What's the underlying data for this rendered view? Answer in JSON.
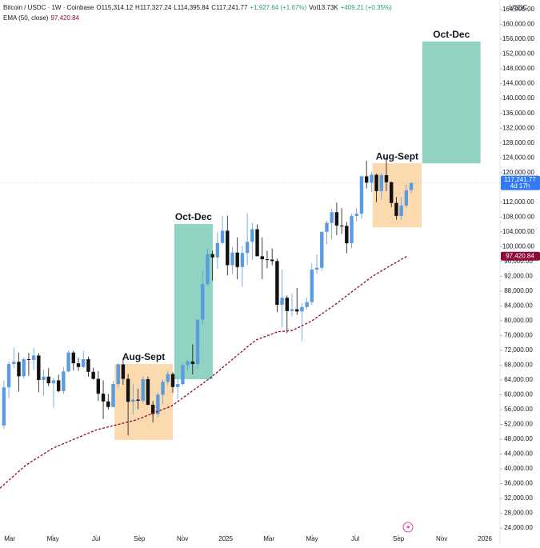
{
  "header": {
    "symbol": "Bitcoin / USDC · 1W · Coinbase",
    "fields": [
      "O115,314.12",
      "H117,327.24",
      "L114,395.84",
      "C117,241.77",
      "+1,927.64 (+1.67%)",
      "Vol13.73K",
      "+409.21 (+0.35%)"
    ],
    "indicator": "EMA (50, close)",
    "indicator_value": "97,420.84"
  },
  "chart_data": {
    "type": "candlestick",
    "y_axis_label": "USDC",
    "price_badge": "117,241.77",
    "countdown": "4d 17h",
    "ema_badge": "97,420.84",
    "up_color": "#5b9be0",
    "down_color": "#111111",
    "ylim": [
      22300,
      166600
    ],
    "xlim": [
      1.55,
      24.7
    ],
    "xticks": [
      {
        "value": 2,
        "label": "Mar"
      },
      {
        "value": 4,
        "label": "May"
      },
      {
        "value": 6,
        "label": "Jul"
      },
      {
        "value": 8,
        "label": "Sep"
      },
      {
        "value": 10,
        "label": "Nov"
      },
      {
        "value": 12,
        "label": "2025"
      },
      {
        "value": 14,
        "label": "Mar"
      },
      {
        "value": 16,
        "label": "May"
      },
      {
        "value": 18,
        "label": "Jul"
      },
      {
        "value": 20,
        "label": "Sep"
      },
      {
        "value": 22,
        "label": "Nov"
      },
      {
        "value": 24,
        "label": "2026"
      }
    ],
    "yticks": [
      {
        "value": 24000,
        "label": "24,000.00"
      },
      {
        "value": 28000,
        "label": "28,000.00"
      },
      {
        "value": 32000,
        "label": "32,000.00"
      },
      {
        "value": 36000,
        "label": "36,000.00"
      },
      {
        "value": 40000,
        "label": "40,000.00"
      },
      {
        "value": 44000,
        "label": "44,000.00"
      },
      {
        "value": 48000,
        "label": "48,000.00"
      },
      {
        "value": 52000,
        "label": "52,000.00"
      },
      {
        "value": 56000,
        "label": "56,000.00"
      },
      {
        "value": 60000,
        "label": "60,000.00"
      },
      {
        "value": 64000,
        "label": "64,000.00"
      },
      {
        "value": 68000,
        "label": "68,000.00"
      },
      {
        "value": 72000,
        "label": "72,000.00"
      },
      {
        "value": 76000,
        "label": "76,000.00"
      },
      {
        "value": 80000,
        "label": "80,000.00"
      },
      {
        "value": 84000,
        "label": "84,000.00"
      },
      {
        "value": 88000,
        "label": "88,000.00"
      },
      {
        "value": 92000,
        "label": "92,000.00"
      },
      {
        "value": 96000,
        "label": "96,000.00"
      },
      {
        "value": 100000,
        "label": "100,000.00"
      },
      {
        "value": 104000,
        "label": "104,000.00"
      },
      {
        "value": 108000,
        "label": "108,000.00"
      },
      {
        "value": 112000,
        "label": "112,000.00"
      },
      {
        "value": 116000,
        "label": "116,000.00"
      },
      {
        "value": 120000,
        "label": "120,000.00"
      },
      {
        "value": 124000,
        "label": "124,000.00"
      },
      {
        "value": 128000,
        "label": "128,000.00"
      },
      {
        "value": 132000,
        "label": "132,000.00"
      },
      {
        "value": 136000,
        "label": "136,000.00"
      },
      {
        "value": 140000,
        "label": "140,000.00"
      },
      {
        "value": 144000,
        "label": "144,000.00"
      },
      {
        "value": 148000,
        "label": "148,000.00"
      },
      {
        "value": 152000,
        "label": "152,000.00"
      },
      {
        "value": 156000,
        "label": "156,000.00"
      },
      {
        "value": 160000,
        "label": "160,000.00"
      },
      {
        "value": 164000,
        "label": "164,000.00"
      }
    ],
    "x": [
      1.73,
      1.96,
      2.19,
      2.42,
      2.65,
      2.88,
      3.11,
      3.34,
      3.57,
      3.8,
      4.03,
      4.26,
      4.49,
      4.72,
      4.95,
      5.18,
      5.41,
      5.64,
      5.87,
      6.1,
      6.33,
      6.56,
      6.79,
      7.02,
      7.25,
      7.48,
      7.71,
      7.94,
      8.17,
      8.4,
      8.63,
      8.86,
      9.09,
      9.32,
      9.55,
      9.78,
      10.01,
      10.24,
      10.47,
      10.7,
      10.93,
      11.16,
      11.39,
      11.62,
      11.85,
      12.08,
      12.31,
      12.54,
      12.77,
      13.0,
      13.23,
      13.46,
      13.69,
      13.92,
      14.15,
      14.38,
      14.61,
      14.84,
      15.07,
      15.3,
      15.53,
      15.76,
      15.99,
      16.22,
      16.45,
      16.68,
      16.91,
      17.14,
      17.37,
      17.6,
      17.83,
      18.06,
      18.29,
      18.52,
      18.75,
      18.98,
      19.21,
      19.44,
      19.67,
      19.9,
      20.13,
      20.36,
      20.59
    ],
    "open": [
      51700,
      62000,
      68300,
      68900,
      65000,
      69600,
      69400,
      70600,
      64000,
      64900,
      63100,
      63900,
      61000,
      66300,
      71400,
      68500,
      67500,
      69600,
      66200,
      64300,
      60300,
      58200,
      56700,
      62900,
      68200,
      64300,
      58100,
      58700,
      58400,
      64200,
      57300,
      54800,
      60000,
      63500,
      65600,
      62100,
      62900,
      68000,
      69000,
      68300,
      80300,
      89900,
      98000,
      97100,
      101000,
      104300,
      95000,
      98400,
      94500,
      98300,
      101300,
      104700,
      97400,
      96600,
      96500,
      96100,
      84300,
      86200,
      82600,
      83100,
      82500,
      83700,
      85000,
      93800,
      94300,
      104000,
      106400,
      109300,
      105700,
      105600,
      100900,
      108300,
      108900,
      119000,
      117300,
      119400,
      115000,
      119300,
      117400,
      111800,
      108300,
      111100,
      115300
    ],
    "high": [
      63900,
      69000,
      72800,
      71400,
      70100,
      71300,
      72700,
      71300,
      66800,
      67200,
      64700,
      65400,
      67500,
      71900,
      71900,
      70000,
      71900,
      70300,
      67300,
      66400,
      63900,
      60200,
      63800,
      68500,
      70000,
      65600,
      62800,
      61600,
      65000,
      64900,
      58300,
      60600,
      64100,
      66500,
      66100,
      64400,
      68400,
      69500,
      73600,
      80300,
      93500,
      99600,
      98900,
      104000,
      108300,
      108300,
      99900,
      102500,
      100200,
      109000,
      106400,
      106000,
      102500,
      98900,
      99500,
      96800,
      93800,
      86800,
      87400,
      88800,
      84700,
      86300,
      95500,
      97900,
      104100,
      107000,
      110200,
      111900,
      110400,
      106700,
      108900,
      110500,
      119000,
      123200,
      120200,
      119700,
      120000,
      124100,
      117600,
      113400,
      113300,
      116800,
      117300
    ],
    "low": [
      50900,
      59000,
      67100,
      60800,
      64500,
      65100,
      66800,
      60700,
      59700,
      62300,
      56600,
      60600,
      60200,
      66100,
      66600,
      66500,
      67200,
      64900,
      64100,
      58400,
      53500,
      56000,
      56600,
      61900,
      62700,
      49000,
      54700,
      56100,
      57800,
      57200,
      52500,
      54000,
      57500,
      62700,
      60500,
      58900,
      62400,
      66600,
      65500,
      66900,
      78900,
      89400,
      90800,
      94000,
      100600,
      92200,
      92600,
      91200,
      89200,
      95000,
      96400,
      97800,
      91200,
      94200,
      95000,
      82300,
      78200,
      76600,
      81200,
      81600,
      74500,
      83000,
      84300,
      92800,
      93400,
      100700,
      102000,
      103100,
      103400,
      98200,
      99600,
      106800,
      107500,
      115700,
      114700,
      112000,
      112700,
      115000,
      110700,
      107300,
      107300,
      110600,
      114400
    ],
    "close": [
      62000,
      68300,
      68900,
      65000,
      69600,
      69400,
      70600,
      64000,
      64900,
      63100,
      63900,
      61000,
      66300,
      71400,
      68500,
      67500,
      69600,
      66200,
      64300,
      60300,
      58200,
      56700,
      62900,
      68200,
      64300,
      58100,
      58700,
      58400,
      64200,
      57300,
      54800,
      60000,
      63500,
      65600,
      62100,
      62900,
      68000,
      69000,
      68300,
      80300,
      89900,
      98000,
      97100,
      101000,
      104300,
      95000,
      98400,
      94500,
      98300,
      101300,
      104700,
      97400,
      96600,
      96500,
      96100,
      84300,
      86200,
      82600,
      83100,
      82500,
      83700,
      85000,
      93800,
      94300,
      104000,
      106400,
      109300,
      105700,
      105600,
      100900,
      108300,
      108900,
      119000,
      117300,
      119400,
      115000,
      119300,
      117400,
      111800,
      108300,
      111100,
      115200,
      117200
    ],
    "ema": {
      "color": "#8b0a3a",
      "x": [
        1.55,
        2.75,
        4,
        6,
        7.85,
        9.5,
        11.3,
        12.5,
        13.4,
        14.4,
        15.1,
        16,
        17.1,
        18,
        18.8,
        19.6,
        20.4
      ],
      "values": [
        34800,
        41000,
        45600,
        50500,
        53200,
        57000,
        64600,
        70500,
        74800,
        77000,
        77400,
        80000,
        84500,
        88500,
        92000,
        94800,
        97420.84
      ]
    },
    "annotations": [
      {
        "label": "Aug-Sept",
        "x": [
          6.85,
          9.55
        ],
        "y": [
          47800,
          68300
        ],
        "color": "#fbd3a2"
      },
      {
        "label": "Oct-Dec",
        "x": [
          9.62,
          11.4
        ],
        "y": [
          64200,
          106100
        ],
        "color": "#7ecbb8"
      },
      {
        "label": "Aug-Sept",
        "x": [
          18.8,
          21.07
        ],
        "y": [
          105200,
          122500
        ],
        "color": "#fbd3a2"
      },
      {
        "label": "Oct-Dec",
        "x": [
          21.1,
          23.8
        ],
        "y": [
          122500,
          155400
        ],
        "color": "#7ecbb8"
      }
    ]
  }
}
